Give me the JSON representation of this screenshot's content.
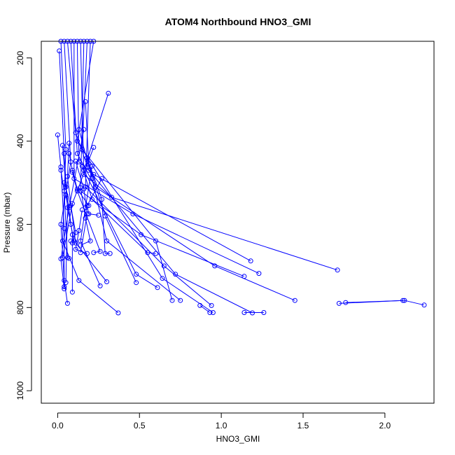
{
  "chart_data": {
    "type": "scatter",
    "title": "ATOM4 Northbound HNO3_GMI",
    "xlabel": "HNO3_GMI",
    "ylabel": "Pressure (mbar)",
    "xlim": [
      -0.1,
      2.3
    ],
    "ylim": [
      1030,
      160
    ],
    "y_reversed": true,
    "x_ticks": [
      0.0,
      0.5,
      1.0,
      1.5,
      2.0
    ],
    "x_tick_labels": [
      "0.0",
      "0.5",
      "1.0",
      "1.5",
      "2.0"
    ],
    "y_ticks": [
      200,
      400,
      600,
      800,
      1000
    ],
    "y_tick_labels": [
      "200",
      "400",
      "600",
      "800",
      "1000"
    ],
    "series": [
      {
        "color": "#0000ff",
        "marker": "open-circle",
        "connected": true,
        "profiles": [
          [
            [
              0.02,
              160
            ],
            [
              0.05,
              420
            ],
            [
              0.03,
              640
            ],
            [
              0.13,
              735
            ],
            [
              0.37,
              813
            ]
          ],
          [
            [
              0.04,
              160
            ],
            [
              0.08,
              450
            ],
            [
              0.02,
              600
            ],
            [
              0.04,
              735
            ],
            [
              0.06,
              790
            ]
          ],
          [
            [
              0.06,
              160
            ],
            [
              0.11,
              380
            ],
            [
              0.19,
              470
            ],
            [
              0.72,
              720
            ],
            [
              1.19,
              813
            ]
          ],
          [
            [
              0.08,
              160
            ],
            [
              0.12,
              430
            ],
            [
              0.23,
              510
            ],
            [
              0.96,
              700
            ],
            [
              1.45,
              783
            ]
          ],
          [
            [
              0.1,
              160
            ],
            [
              0.1,
              490
            ],
            [
              0.46,
              575
            ],
            [
              1.23,
              718
            ]
          ],
          [
            [
              0.12,
              160
            ],
            [
              0.13,
              450
            ],
            [
              0.22,
              480
            ],
            [
              1.18,
              688
            ]
          ],
          [
            [
              0.14,
              160
            ],
            [
              0.16,
              480
            ],
            [
              0.33,
              535
            ],
            [
              1.71,
              710
            ]
          ],
          [
            [
              0.16,
              160
            ],
            [
              0.14,
              520
            ],
            [
              0.51,
              625
            ],
            [
              1.14,
              725
            ]
          ],
          [
            [
              0.18,
              160
            ],
            [
              0.15,
              420
            ],
            [
              0.6,
              640
            ],
            [
              0.7,
              783
            ]
          ],
          [
            [
              0.2,
              160
            ],
            [
              0.17,
              510
            ],
            [
              0.65,
              700
            ],
            [
              0.94,
              795
            ]
          ],
          [
            [
              0.22,
              160
            ],
            [
              0.12,
              400
            ],
            [
              0.64,
              730
            ],
            [
              0.95,
              812
            ]
          ],
          [
            [
              0.31,
              285
            ],
            [
              0.16,
              470
            ],
            [
              0.48,
              720
            ],
            [
              0.61,
              752
            ]
          ],
          [
            [
              0.17,
              305
            ],
            [
              0.19,
              455
            ],
            [
              0.29,
              580
            ],
            [
              0.48,
              740
            ]
          ],
          [
            [
              0.01,
              183
            ],
            [
              0.04,
              430
            ],
            [
              0.06,
              560
            ],
            [
              0.05,
              740
            ]
          ],
          [
            [
              0.0,
              385
            ],
            [
              0.02,
              462
            ],
            [
              0.04,
              610
            ],
            [
              0.04,
              750
            ]
          ],
          [
            [
              0.16,
              372
            ],
            [
              0.07,
              560
            ],
            [
              0.02,
              683
            ],
            [
              0.04,
              755
            ]
          ],
          [
            [
              0.22,
              415
            ],
            [
              0.09,
              550
            ],
            [
              0.03,
              680
            ]
          ],
          [
            [
              0.13,
              372
            ],
            [
              0.21,
              490
            ],
            [
              0.3,
              640
            ],
            [
              0.75,
              783
            ]
          ],
          [
            [
              0.07,
              405
            ],
            [
              0.06,
              485
            ],
            [
              0.11,
              645
            ],
            [
              0.3,
              738
            ]
          ],
          [
            [
              0.18,
              440
            ],
            [
              0.27,
              540
            ],
            [
              0.29,
              670
            ],
            [
              0.32,
              670
            ]
          ],
          [
            [
              0.15,
              460
            ],
            [
              0.21,
              540
            ],
            [
              0.55,
              668
            ],
            [
              0.6,
              670
            ]
          ],
          [
            [
              0.02,
              470
            ],
            [
              0.04,
              520
            ],
            [
              0.06,
              680
            ],
            [
              0.07,
              682
            ]
          ],
          [
            [
              0.09,
              475
            ],
            [
              0.12,
              520
            ],
            [
              0.26,
              665
            ],
            [
              0.22,
              668
            ]
          ],
          [
            [
              0.11,
              448
            ],
            [
              0.16,
              515
            ],
            [
              0.18,
              575
            ],
            [
              0.14,
              668
            ]
          ],
          [
            [
              0.04,
              500
            ],
            [
              0.08,
              555
            ],
            [
              0.11,
              620
            ],
            [
              0.09,
              645
            ]
          ],
          [
            [
              0.14,
              512
            ],
            [
              0.17,
              585
            ],
            [
              0.2,
              640
            ],
            [
              0.14,
              650
            ]
          ],
          [
            [
              0.05,
              530
            ],
            [
              0.08,
              600
            ],
            [
              0.1,
              640
            ],
            [
              0.08,
              640
            ]
          ],
          [
            [
              0.27,
              490
            ],
            [
              0.18,
              555
            ],
            [
              0.19,
              575
            ],
            [
              0.25,
              578
            ]
          ],
          [
            [
              0.15,
              565
            ],
            [
              0.13,
              615
            ],
            [
              0.11,
              660
            ],
            [
              0.18,
              670
            ]
          ],
          [
            [
              0.03,
              410
            ],
            [
              0.05,
              510
            ],
            [
              0.09,
              625
            ],
            [
              0.09,
              763
            ]
          ],
          [
            [
              0.21,
              460
            ],
            [
              0.17,
              560
            ],
            [
              0.14,
              640
            ],
            [
              0.26,
              748
            ]
          ],
          [
            [
              0.07,
              430
            ],
            [
              0.09,
              470
            ],
            [
              0.12,
              515
            ],
            [
              0.19,
              555
            ]
          ],
          [
            [
              1.76,
              788
            ],
            [
              2.12,
              783
            ],
            [
              2.24,
              794
            ]
          ],
          [
            [
              1.72,
              790
            ],
            [
              2.11,
              783
            ]
          ],
          [
            [
              1.14,
              812
            ],
            [
              1.26,
              812
            ]
          ],
          [
            [
              0.87,
              795
            ],
            [
              0.93,
              812
            ]
          ]
        ]
      }
    ]
  }
}
